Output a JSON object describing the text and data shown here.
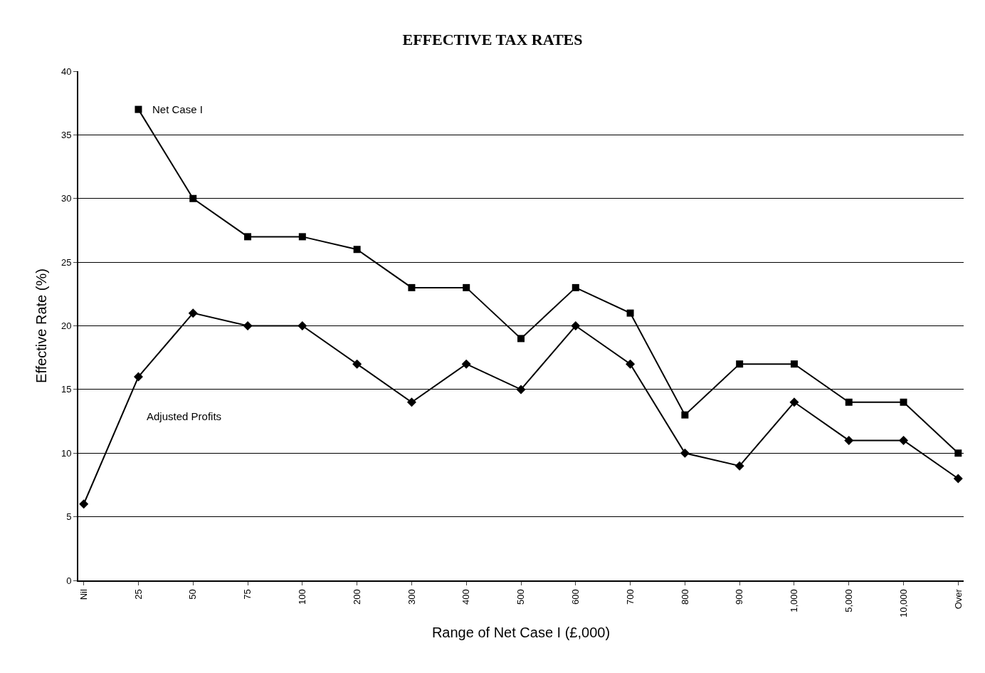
{
  "chart_data": {
    "type": "line",
    "title": "EFFECTIVE TAX RATES",
    "xlabel": "Range of Net Case I (£,000)",
    "ylabel": "Effective Rate (%)",
    "categories": [
      "Nil",
      "25",
      "50",
      "75",
      "100",
      "200",
      "300",
      "400",
      "500",
      "600",
      "700",
      "800",
      "900",
      "1,000",
      "5,000",
      "10,000",
      "Over"
    ],
    "series": [
      {
        "name": "Net Case I",
        "color": "#000000",
        "marker": "square",
        "values": [
          null,
          37,
          30,
          27,
          27,
          26,
          23,
          23,
          19,
          23,
          21,
          13,
          17,
          17,
          14,
          14,
          10
        ]
      },
      {
        "name": "Adjusted Profits",
        "color": "#000000",
        "marker": "diamond",
        "values": [
          6,
          16,
          21,
          20,
          20,
          17,
          14,
          17,
          15,
          20,
          17,
          10,
          9,
          14,
          11,
          11,
          8
        ]
      }
    ],
    "ylim": [
      0,
      40
    ],
    "yticks": [
      0,
      5,
      10,
      15,
      20,
      25,
      30,
      35,
      40
    ],
    "grid": "y",
    "legend": false,
    "line_style": "solid"
  }
}
